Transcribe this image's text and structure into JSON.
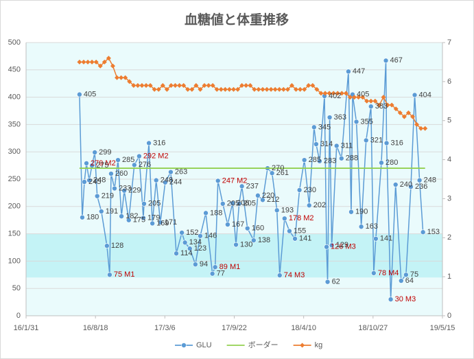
{
  "chart_data": {
    "type": "line",
    "title": "血糖値と体重推移",
    "xlim": [
      "16/1/31",
      "19/5/15"
    ],
    "xticks": [
      "16/1/31",
      "16/8/18",
      "17/3/6",
      "17/9/22",
      "18/4/10",
      "18/10/27",
      "19/5/15"
    ],
    "ylim": [
      0,
      500
    ],
    "yticks": [
      0,
      50,
      100,
      150,
      200,
      250,
      300,
      350,
      400,
      450,
      500
    ],
    "y2lim": [
      0,
      7
    ],
    "y2ticks": [
      0,
      1,
      2,
      3,
      4,
      5,
      6,
      7
    ],
    "grid": true,
    "legend": "bottom",
    "plot_color": "#eafbfc",
    "band": [
      70,
      150
    ],
    "band_color": "#c4f3f6",
    "highlight_color": "#c00000",
    "series": [
      {
        "name": "GLU",
        "color": "#5b9bd5",
        "marker": "circle",
        "x": [
          "16/7/3",
          "16/7/11",
          "16/7/17",
          "16/7/23",
          "16/7/31",
          "16/8/8",
          "16/8/16",
          "16/8/23",
          "16/9/4",
          "16/9/20",
          "16/9/28",
          "16/10/2",
          "16/10/12",
          "16/10/22",
          "16/11/1",
          "16/11/9",
          "16/11/22",
          "16/12/8",
          "16/12/22",
          "17/1/3",
          "17/1/5",
          "17/1/19",
          "17/1/29",
          "17/2/9",
          "17/2/21",
          "17/3/7",
          "17/3/23",
          "17/4/8",
          "17/4/24",
          "17/5/3",
          "17/5/17",
          "17/6/2",
          "17/6/16",
          "17/7/2",
          "17/7/21",
          "17/7/29",
          "17/8/6",
          "17/8/20",
          "17/9/3",
          "17/9/17",
          "17/9/27",
          "17/10/6",
          "17/10/14",
          "17/10/30",
          "17/11/17",
          "17/11/29",
          "17/12/13",
          "17/12/27",
          "18/1/9",
          "18/1/23",
          "18/1/31",
          "18/2/14",
          "18/2/28",
          "18/3/16",
          "18/3/29",
          "18/4/12",
          "18/4/26",
          "18/5/10",
          "18/5/16",
          "18/5/26",
          "18/6/9",
          "18/6/15",
          "18/6/18",
          "18/6/24",
          "18/6/30",
          "18/7/14",
          "18/7/28",
          "18/8/17",
          "18/8/25",
          "18/8/29",
          "18/9/9",
          "18/9/23",
          "18/10/7",
          "18/10/21",
          "18/10/29",
          "18/11/4",
          "18/11/20",
          "18/12/3",
          "18/12/5",
          "18/12/17",
          "18/12/31",
          "19/1/16",
          "19/1/30",
          "19/2/13",
          "19/2/24",
          "19/3/10",
          "19/3/20"
        ],
        "values": [
          405,
          180,
          245,
          279,
          248,
          275,
          299,
          219,
          191,
          128,
          75,
          260,
          233,
          285,
          182,
          229,
          175,
          276,
          292,
          179,
          205,
          316,
          169,
          248,
          171,
          244,
          263,
          114,
          152,
          134,
          123,
          94,
          146,
          188,
          77,
          89,
          247,
          205,
          167,
          206,
          130,
          205,
          237,
          160,
          138,
          220,
          212,
          270,
          261,
          193,
          74,
          178,
          155,
          141,
          230,
          285,
          202,
          345,
          314,
          283,
          402,
          126,
          62,
          363,
          129,
          311,
          288,
          447,
          190,
          405,
          355,
          163,
          321,
          383,
          78,
          141,
          280,
          467,
          316,
          30,
          240,
          64,
          75,
          236,
          404,
          248,
          153
        ],
        "value_labels": [
          "405",
          "180",
          "245",
          "279 M2",
          "248",
          "275",
          "299",
          "219",
          "191",
          "128",
          "75 M1",
          "260",
          "233",
          "285",
          "182",
          "229",
          "175",
          "276",
          "292 M2",
          "179",
          "205",
          "316",
          "169",
          "248",
          "171",
          "244",
          "263",
          "114",
          "152",
          "134",
          "123",
          "94",
          "146",
          "188",
          "77",
          "89 M1",
          "247 M2",
          "205",
          "167",
          "206",
          "130",
          "205",
          "237",
          "160",
          "138",
          "220",
          "212",
          "270",
          "261",
          "193",
          "74 M3",
          "178 M2",
          "155",
          "141",
          "230",
          "285",
          "202",
          "345",
          "314",
          "283",
          "402",
          "126 M3",
          "62",
          "363",
          "129",
          "311",
          "288",
          "447",
          "190",
          "405",
          "355",
          "163",
          "321",
          "383",
          "78 M4",
          "141",
          "280",
          "467",
          "316",
          "30 M3",
          "240",
          "64",
          "75",
          "236",
          "404",
          "248",
          "153"
        ]
      },
      {
        "name": "ボーダー",
        "color": "#92d050",
        "x": [
          "16/7/3",
          "19/3/26"
        ],
        "values": [
          270,
          270
        ]
      },
      {
        "name": "kg",
        "color": "#ed7d31",
        "marker": "diamond",
        "axis": "y2",
        "x": [
          "16/7/3",
          "16/7/15",
          "16/7/27",
          "16/8/8",
          "16/8/20",
          "16/9/1",
          "16/9/13",
          "16/9/25",
          "16/10/7",
          "16/10/19",
          "16/10/31",
          "16/11/12",
          "16/11/24",
          "16/12/6",
          "16/12/18",
          "16/12/30",
          "17/1/11",
          "17/1/23",
          "17/2/4",
          "17/2/16",
          "17/2/28",
          "17/3/12",
          "17/3/24",
          "17/4/5",
          "17/4/17",
          "17/4/29",
          "17/5/11",
          "17/5/23",
          "17/6/4",
          "17/6/16",
          "17/6/28",
          "17/7/10",
          "17/7/22",
          "17/8/3",
          "17/8/15",
          "17/8/27",
          "17/9/8",
          "17/9/20",
          "17/10/2",
          "17/10/14",
          "17/10/26",
          "17/11/7",
          "17/11/19",
          "17/12/1",
          "17/12/13",
          "17/12/25",
          "18/1/6",
          "18/1/18",
          "18/1/30",
          "18/2/11",
          "18/2/23",
          "18/3/7",
          "18/3/19",
          "18/3/31",
          "18/4/12",
          "18/4/24",
          "18/5/6",
          "18/5/18",
          "18/5/30",
          "18/6/11",
          "18/6/23",
          "18/7/5",
          "18/7/17",
          "18/7/29",
          "18/8/10",
          "18/8/22",
          "18/9/3",
          "18/9/15",
          "18/9/27",
          "18/10/9",
          "18/10/21",
          "18/11/2",
          "18/11/14",
          "18/11/26",
          "18/12/8",
          "18/12/20",
          "19/1/1",
          "19/1/13",
          "19/1/25",
          "19/2/6",
          "19/2/18",
          "19/3/2",
          "19/3/14",
          "19/3/26"
        ],
        "values": [
          6.5,
          6.5,
          6.5,
          6.5,
          6.5,
          6.4,
          6.5,
          6.6,
          6.4,
          6.1,
          6.1,
          6.1,
          6.0,
          5.9,
          5.9,
          5.9,
          5.9,
          5.9,
          5.8,
          5.8,
          5.9,
          5.8,
          5.9,
          5.9,
          5.9,
          5.9,
          5.8,
          5.8,
          5.9,
          5.8,
          5.9,
          5.9,
          5.9,
          5.8,
          5.8,
          5.8,
          5.8,
          5.8,
          5.8,
          5.9,
          5.9,
          5.9,
          5.8,
          5.8,
          5.8,
          5.8,
          5.8,
          5.8,
          5.8,
          5.8,
          5.8,
          5.9,
          5.8,
          5.8,
          5.8,
          5.9,
          5.9,
          5.8,
          5.7,
          5.7,
          5.7,
          5.7,
          5.7,
          5.7,
          5.7,
          5.6,
          5.6,
          5.6,
          5.6,
          5.5,
          5.5,
          5.5,
          5.4,
          5.6,
          5.4,
          5.4,
          5.3,
          5.2,
          5.1,
          5.2,
          5.1,
          4.9,
          4.8,
          4.8
        ]
      }
    ]
  }
}
